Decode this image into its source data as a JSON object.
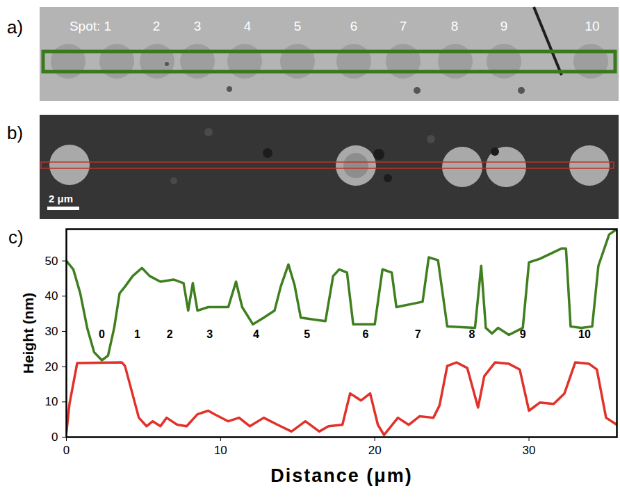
{
  "panel_a": {
    "letter": "a)",
    "spot_labels": [
      "Spot: 1",
      "2",
      "3",
      "4",
      "5",
      "6",
      "7",
      "8",
      "9",
      "10"
    ]
  },
  "panel_b": {
    "letter": "b)",
    "scale_bar": "2 μm"
  },
  "chart_data": {
    "letter": "c)",
    "type": "line",
    "x_label": "Distance (μm)",
    "y_label": "Height (nm)",
    "xlim": [
      0,
      35.7
    ],
    "ylim": [
      0,
      59
    ],
    "xticks": [
      0,
      10,
      20,
      30
    ],
    "yticks": [
      0,
      10,
      20,
      30,
      40,
      50
    ],
    "series": [
      {
        "color": "#3f7f1f",
        "x": [
          0,
          0.45,
          0.9,
          1.35,
          1.8,
          2.3,
          2.7,
          3.1,
          3.45,
          3.8,
          4.3,
          4.9,
          5.4,
          6.1,
          6.95,
          7.6,
          7.9,
          8.2,
          8.5,
          9.2,
          10.5,
          11,
          11.4,
          12.1,
          12.8,
          13.5,
          13.9,
          14.4,
          14.8,
          15.2,
          16.8,
          17.3,
          17.7,
          18.2,
          18.6,
          20,
          20.5,
          21.1,
          21.4,
          23.1,
          23.5,
          24.1,
          24.7,
          26.5,
          26.9,
          27.2,
          27.6,
          28,
          28.7,
          29.6,
          30,
          30.7,
          32.1,
          32.4,
          32.7,
          33.4,
          34.1,
          34.5,
          35.2,
          35.7
        ],
        "values": [
          50,
          47.6,
          40.8,
          31,
          24.1,
          21.8,
          23.1,
          31,
          40.8,
          42.7,
          45.7,
          48,
          45.7,
          44.1,
          44.7,
          43.7,
          35.9,
          43.7,
          35.9,
          36.9,
          36.9,
          44.1,
          36.9,
          32,
          33.9,
          35.9,
          42.7,
          49,
          43.1,
          33.9,
          32.9,
          45.7,
          47.6,
          46.7,
          32,
          32,
          47.6,
          46.7,
          36.9,
          38.4,
          51,
          50.2,
          31.4,
          31,
          48.6,
          31,
          29.4,
          31,
          29,
          31,
          49.6,
          50.6,
          53.5,
          53.5,
          31.4,
          31,
          31.4,
          48.6,
          57.5,
          59
        ]
      },
      {
        "color": "#e0322a",
        "x": [
          0,
          0.2,
          0.7,
          3.6,
          3.8,
          4.7,
          5.2,
          5.6,
          6.1,
          6.5,
          7.2,
          7.8,
          8.5,
          9.2,
          9.6,
          10.5,
          11.2,
          11.9,
          12.8,
          13.7,
          14.6,
          15.5,
          16.4,
          17,
          17.9,
          18.4,
          19.1,
          19.7,
          20.2,
          20.6,
          21.5,
          22.2,
          22.9,
          23.8,
          24.2,
          24.7,
          25.3,
          26,
          26.7,
          27.1,
          27.8,
          28.7,
          29.4,
          30,
          30.7,
          31.6,
          32.3,
          33,
          33.9,
          34.4,
          35,
          35.7
        ],
        "values": [
          1.2,
          9.4,
          21,
          21.2,
          20.2,
          5.5,
          3.1,
          4.5,
          3.1,
          5.5,
          3.5,
          3.1,
          6.5,
          7.5,
          6.5,
          4.5,
          5.5,
          3.1,
          5.5,
          3.5,
          1.6,
          4.5,
          1.6,
          3.1,
          3.5,
          12.4,
          10.4,
          12.4,
          3.5,
          0.6,
          5.5,
          3.5,
          5.9,
          5.5,
          9,
          20.2,
          21.2,
          19.6,
          8.4,
          17.3,
          21.2,
          20.8,
          19.2,
          7.5,
          9.8,
          9.4,
          12.4,
          21.2,
          20.8,
          19.2,
          5.5,
          3.5
        ]
      }
    ],
    "annotations": [
      {
        "text": "0",
        "x": 2.3,
        "y": 29.2
      },
      {
        "text": "1",
        "x": 4.6,
        "y": 29.2
      },
      {
        "text": "2",
        "x": 6.7,
        "y": 29.2
      },
      {
        "text": "3",
        "x": 9.3,
        "y": 29.2
      },
      {
        "text": "4",
        "x": 12.3,
        "y": 29.2
      },
      {
        "text": "5",
        "x": 15.6,
        "y": 29.2
      },
      {
        "text": "6",
        "x": 19.4,
        "y": 29.2
      },
      {
        "text": "7",
        "x": 22.8,
        "y": 29.2
      },
      {
        "text": "8",
        "x": 26.3,
        "y": 29.2
      },
      {
        "text": "9",
        "x": 29.6,
        "y": 29.2
      },
      {
        "text": "10",
        "x": 33.6,
        "y": 29.2
      }
    ]
  }
}
